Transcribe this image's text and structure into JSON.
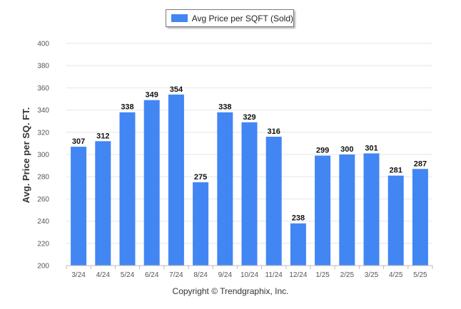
{
  "chart_data": {
    "type": "bar",
    "legend": {
      "label": "Avg Price per SQFT (Sold)",
      "color": "#4286f4",
      "position": "top-center"
    },
    "ylabel": "Avg. Price per SQ. FT.",
    "xlabel": "",
    "ylim": [
      200,
      400
    ],
    "yticks": [
      200,
      220,
      240,
      260,
      280,
      300,
      320,
      340,
      360,
      380,
      400
    ],
    "grid": true,
    "categories": [
      "3/24",
      "4/24",
      "5/24",
      "6/24",
      "7/24",
      "8/24",
      "9/24",
      "10/24",
      "11/24",
      "12/24",
      "1/25",
      "2/25",
      "3/25",
      "4/25",
      "5/25"
    ],
    "series": [
      {
        "name": "Avg Price per SQFT (Sold)",
        "values": [
          307,
          312,
          338,
          349,
          354,
          275,
          338,
          329,
          316,
          238,
          299,
          300,
          301,
          281,
          287
        ]
      }
    ],
    "data_labels": true
  },
  "footer": {
    "copyright": "Copyright © Trendgraphix, Inc."
  }
}
